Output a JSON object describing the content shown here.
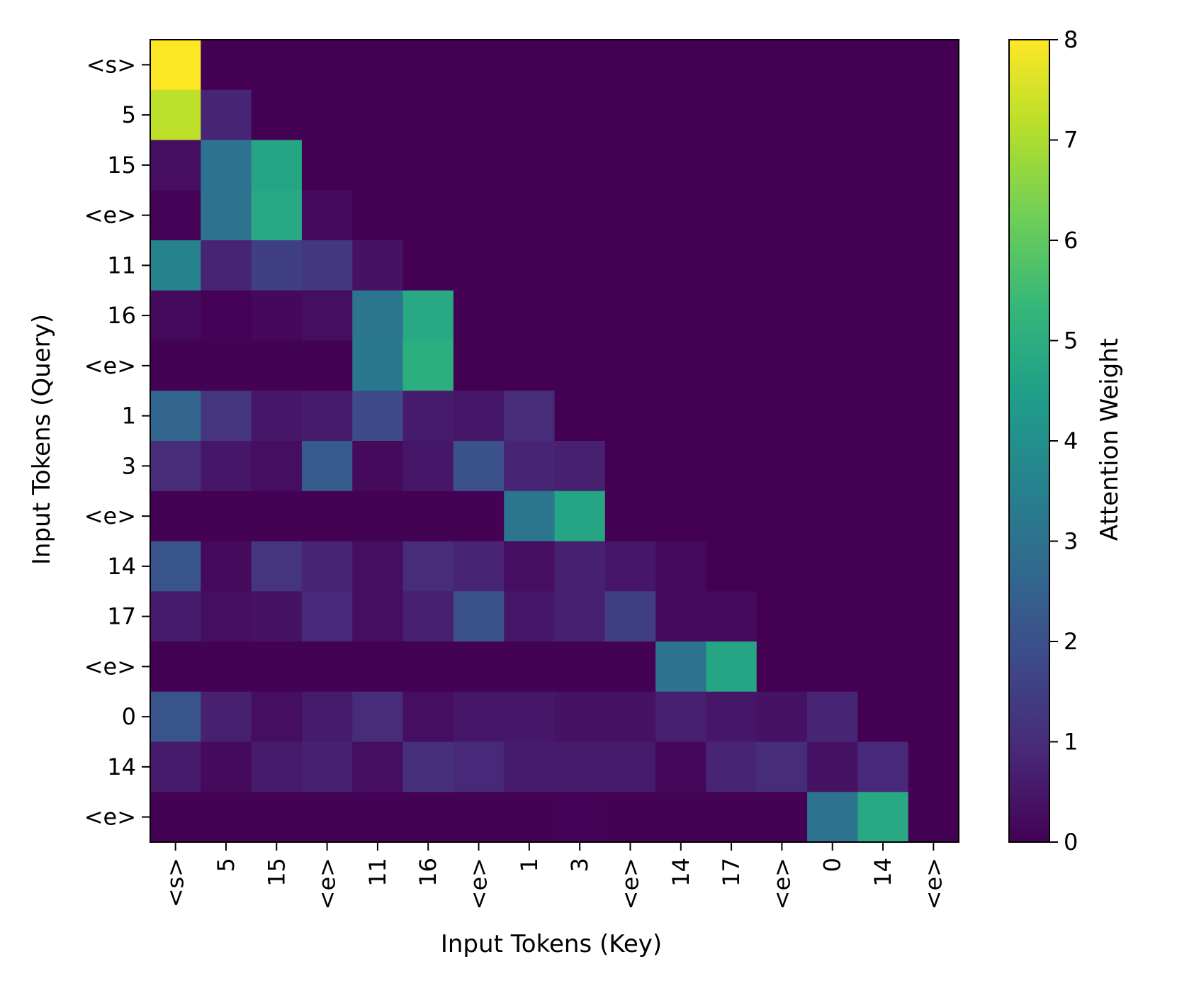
{
  "chart_data": {
    "type": "heatmap",
    "title": "",
    "xlabel": "Input Tokens (Key)",
    "ylabel": "Input Tokens (Query)",
    "x_tokens": [
      "<s>",
      "5",
      "15",
      "<e>",
      "11",
      "16",
      "<e>",
      "1",
      "3",
      "<e>",
      "14",
      "17",
      "<e>",
      "0",
      "14",
      "<e>"
    ],
    "y_tokens": [
      "<s>",
      "5",
      "15",
      "<e>",
      "11",
      "16",
      "<e>",
      "1",
      "3",
      "<e>",
      "14",
      "17",
      "<e>",
      "0",
      "14",
      "<e>"
    ],
    "colorbar": {
      "label": "Attention Weight",
      "range": [
        0,
        8
      ],
      "ticks": [
        "0",
        "1",
        "2",
        "3",
        "4",
        "5",
        "6",
        "7",
        "8"
      ],
      "colormap": "viridis"
    },
    "values": [
      [
        8.0,
        0,
        0,
        0,
        0,
        0,
        0,
        0,
        0,
        0,
        0,
        0,
        0,
        0,
        0,
        0
      ],
      [
        7.2,
        0.8,
        0,
        0,
        0,
        0,
        0,
        0,
        0,
        0,
        0,
        0,
        0,
        0,
        0,
        0
      ],
      [
        0.3,
        3.0,
        4.7,
        0,
        0,
        0,
        0,
        0,
        0,
        0,
        0,
        0,
        0,
        0,
        0,
        0
      ],
      [
        0.05,
        3.0,
        4.8,
        0.2,
        0,
        0,
        0,
        0,
        0,
        0,
        0,
        0,
        0,
        0,
        0,
        0
      ],
      [
        3.6,
        0.8,
        1.5,
        1.3,
        0.4,
        0,
        0,
        0,
        0,
        0,
        0,
        0,
        0,
        0,
        0,
        0
      ],
      [
        0.2,
        0.05,
        0.15,
        0.3,
        3.1,
        4.8,
        0,
        0,
        0,
        0,
        0,
        0,
        0,
        0,
        0,
        0
      ],
      [
        0.02,
        0.02,
        0.02,
        0.02,
        3.2,
        5.0,
        0,
        0,
        0,
        0,
        0,
        0,
        0,
        0,
        0,
        0
      ],
      [
        2.6,
        1.2,
        0.5,
        0.6,
        1.8,
        0.6,
        0.5,
        1.0,
        0,
        0,
        0,
        0,
        0,
        0,
        0,
        0
      ],
      [
        1.0,
        0.5,
        0.3,
        2.3,
        0.2,
        0.5,
        2.0,
        0.8,
        0.7,
        0,
        0,
        0,
        0,
        0,
        0,
        0
      ],
      [
        0.02,
        0.02,
        0.02,
        0.02,
        0.02,
        0.02,
        0.02,
        3.1,
        4.7,
        0,
        0,
        0,
        0,
        0,
        0,
        0
      ],
      [
        2.1,
        0.2,
        1.2,
        0.8,
        0.3,
        1.0,
        0.8,
        0.3,
        0.7,
        0.5,
        0.2,
        0,
        0,
        0,
        0,
        0
      ],
      [
        0.6,
        0.3,
        0.4,
        0.9,
        0.3,
        0.7,
        2.0,
        0.5,
        0.7,
        1.5,
        0.2,
        0.2,
        0,
        0,
        0,
        0
      ],
      [
        0.02,
        0.02,
        0.02,
        0.02,
        0.02,
        0.02,
        0.02,
        0.02,
        0.02,
        0.02,
        3.0,
        4.7,
        0,
        0,
        0,
        0
      ],
      [
        2.1,
        0.7,
        0.3,
        0.6,
        1.0,
        0.3,
        0.5,
        0.5,
        0.4,
        0.4,
        0.7,
        0.5,
        0.4,
        0.8,
        0,
        0
      ],
      [
        0.6,
        0.2,
        0.6,
        0.7,
        0.3,
        1.1,
        0.9,
        0.6,
        0.6,
        0.6,
        0.15,
        0.8,
        1.0,
        0.4,
        0.9,
        0
      ],
      [
        0.02,
        0.02,
        0.02,
        0.02,
        0.02,
        0.02,
        0.02,
        0.02,
        0.05,
        0.02,
        0.02,
        0.02,
        0.02,
        3.0,
        4.8,
        0
      ]
    ],
    "grid": false,
    "legend": "colorbar-right"
  }
}
